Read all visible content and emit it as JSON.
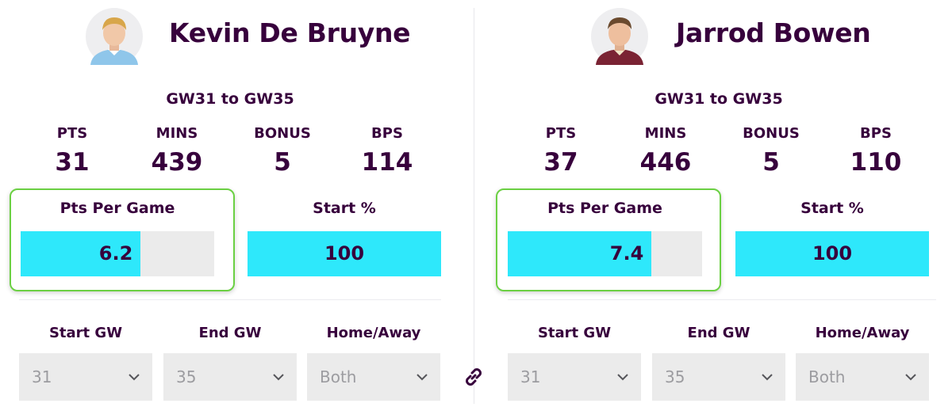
{
  "players": [
    {
      "name": "Kevin De Bruyne",
      "range": "GW31 to GW35",
      "stats": [
        {
          "label": "PTS",
          "value": "31"
        },
        {
          "label": "MINS",
          "value": "439"
        },
        {
          "label": "BONUS",
          "value": "5"
        },
        {
          "label": "BPS",
          "value": "114"
        }
      ],
      "pts_per_game": {
        "label": "Pts Per Game",
        "value": "6.2",
        "fill_fraction": 0.62
      },
      "start_pct": {
        "label": "Start %",
        "value": "100",
        "fill_fraction": 1.0
      },
      "start_gw": {
        "label": "Start GW",
        "value": "31"
      },
      "end_gw": {
        "label": "End GW",
        "value": "35"
      },
      "home_away": {
        "label": "Home/Away",
        "value": "Both"
      },
      "kit_colors": {
        "shirt": "#8fc6ea",
        "collar": "#ffffff",
        "hair": "#d8a64a"
      }
    },
    {
      "name": "Jarrod Bowen",
      "range": "GW31 to GW35",
      "stats": [
        {
          "label": "PTS",
          "value": "37"
        },
        {
          "label": "MINS",
          "value": "446"
        },
        {
          "label": "BONUS",
          "value": "5"
        },
        {
          "label": "BPS",
          "value": "110"
        }
      ],
      "pts_per_game": {
        "label": "Pts Per Game",
        "value": "7.4",
        "fill_fraction": 0.74
      },
      "start_pct": {
        "label": "Start %",
        "value": "100",
        "fill_fraction": 1.0
      },
      "start_gw": {
        "label": "Start GW",
        "value": "31"
      },
      "end_gw": {
        "label": "End GW",
        "value": "35"
      },
      "home_away": {
        "label": "Home/Away",
        "value": "Both"
      },
      "kit_colors": {
        "shirt": "#7a2333",
        "collar": "#f0e6c8",
        "hair": "#6b4a2e"
      }
    }
  ],
  "icons": {
    "link": "link-icon",
    "dropdown": "chevron-down-icon"
  },
  "colors": {
    "accent_bar": "#2ee8fb",
    "highlight_border": "#6bd043",
    "text": "#37003c"
  }
}
